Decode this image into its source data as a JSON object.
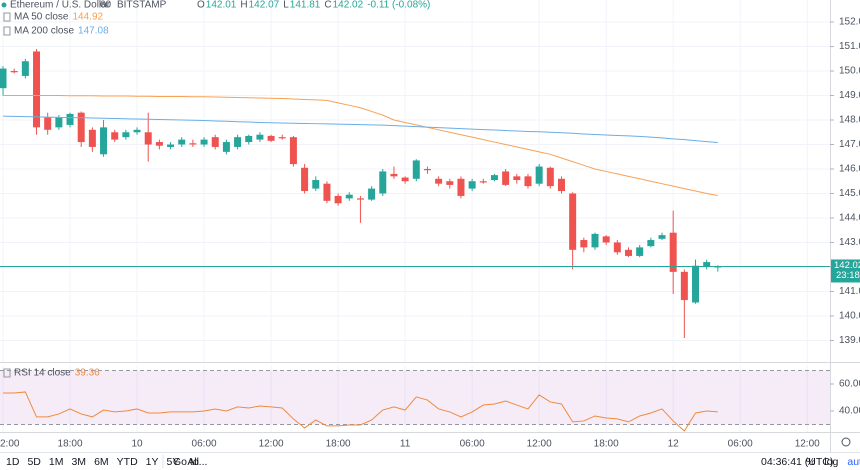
{
  "chart_data": {
    "type": "candlestick",
    "title": "Ethereum / U.S. Dollar",
    "interval": "60",
    "exchange": "BITSTAMP",
    "ohlc_labels": [
      "O",
      "H",
      "L",
      "C"
    ],
    "change": "-0.11 (-0.08%)",
    "countdown": "23:18",
    "up_color": "#26a69a",
    "down_color": "#ef5350",
    "candles": {
      "open": [
        149.3,
        150.0,
        149.8,
        150.8,
        148.1,
        147.7,
        147.8,
        148.3,
        147.6,
        146.6,
        147.5,
        147.3,
        147.5,
        147.5,
        147.1,
        146.9,
        147.0,
        147.05,
        147.0,
        147.3,
        146.7,
        146.9,
        147.1,
        147.2,
        147.35,
        147.3,
        147.3,
        146.05,
        145.2,
        145.4,
        144.9,
        144.8,
        144.8,
        144.75,
        145.0,
        145.8,
        145.65,
        145.6,
        146.0,
        145.6,
        145.5,
        145.6,
        145.2,
        145.5,
        145.55,
        145.9,
        145.7,
        145.7,
        145.4,
        146.05,
        145.6,
        145.0,
        143.1,
        142.8,
        143.25,
        143.0,
        142.7,
        142.45,
        142.85,
        143.15,
        143.4,
        141.8,
        140.55,
        142.0,
        142.01
      ],
      "high": [
        150.2,
        150.1,
        150.5,
        150.9,
        148.3,
        148.2,
        148.3,
        148.35,
        147.7,
        148.0,
        147.6,
        147.6,
        147.7,
        148.3,
        147.2,
        147.1,
        147.3,
        147.2,
        147.3,
        147.4,
        147.2,
        147.4,
        147.4,
        147.5,
        147.4,
        147.4,
        147.35,
        146.2,
        145.7,
        145.5,
        145.0,
        145.05,
        144.9,
        145.3,
        146.0,
        146.1,
        145.7,
        146.4,
        146.1,
        145.7,
        145.6,
        145.7,
        145.6,
        145.6,
        145.8,
        146.0,
        145.8,
        145.8,
        146.2,
        146.1,
        145.7,
        145.05,
        143.2,
        143.4,
        143.3,
        143.1,
        142.8,
        142.9,
        143.2,
        143.4,
        144.3,
        141.9,
        142.3,
        142.3,
        142.07
      ],
      "low": [
        149.0,
        149.9,
        149.7,
        147.4,
        147.4,
        147.6,
        147.7,
        146.9,
        146.7,
        146.5,
        147.1,
        147.2,
        147.4,
        146.3,
        146.8,
        146.8,
        146.9,
        146.9,
        146.9,
        146.8,
        146.6,
        146.8,
        147.0,
        147.1,
        147.1,
        147.2,
        146.1,
        145.0,
        145.1,
        144.6,
        144.5,
        144.7,
        143.8,
        144.7,
        144.9,
        145.6,
        145.4,
        145.5,
        145.8,
        145.3,
        145.2,
        144.8,
        145.1,
        145.4,
        145.5,
        145.3,
        145.4,
        145.2,
        145.3,
        145.2,
        145.0,
        141.9,
        142.6,
        142.7,
        142.9,
        142.5,
        142.4,
        142.4,
        142.8,
        143.1,
        140.9,
        139.1,
        140.5,
        141.9,
        141.81
      ],
      "close": [
        150.1,
        149.95,
        150.4,
        147.7,
        147.6,
        148.1,
        148.25,
        147.1,
        146.9,
        147.7,
        147.2,
        147.5,
        147.6,
        147.0,
        146.95,
        147.0,
        147.2,
        147.0,
        147.2,
        146.9,
        147.1,
        147.3,
        147.35,
        147.4,
        147.15,
        147.25,
        146.2,
        145.1,
        145.55,
        144.7,
        144.6,
        144.95,
        144.75,
        145.2,
        145.9,
        145.7,
        145.5,
        146.35,
        145.95,
        145.4,
        145.35,
        144.9,
        145.5,
        145.45,
        145.75,
        145.35,
        145.55,
        145.3,
        146.1,
        145.3,
        145.1,
        142.7,
        142.8,
        143.35,
        143.0,
        142.6,
        142.45,
        142.8,
        143.1,
        143.3,
        141.8,
        140.65,
        142.05,
        142.2,
        142.02
      ]
    },
    "series": [
      {
        "name": "MA 50 close",
        "color": "#f7a155",
        "values": [
          149.0,
          149.0,
          149.0,
          149.0,
          149.0,
          149.0,
          148.99,
          148.99,
          148.99,
          148.98,
          148.98,
          148.98,
          148.97,
          148.97,
          148.96,
          148.96,
          148.96,
          148.95,
          148.95,
          148.94,
          148.93,
          148.92,
          148.91,
          148.9,
          148.89,
          148.88,
          148.86,
          148.84,
          148.82,
          148.8,
          148.7,
          148.6,
          148.5,
          148.35,
          148.2,
          148.0,
          147.9,
          147.8,
          147.7,
          147.6,
          147.5,
          147.4,
          147.3,
          147.2,
          147.1,
          147.0,
          146.9,
          146.8,
          146.7,
          146.6,
          146.45,
          146.3,
          146.15,
          146.0,
          145.9,
          145.8,
          145.7,
          145.6,
          145.5,
          145.4,
          145.3,
          145.2,
          145.1,
          145.0,
          144.92
        ]
      },
      {
        "name": "MA 200 close",
        "color": "#6aaee6",
        "values": [
          148.16,
          148.15,
          148.14,
          148.13,
          148.12,
          148.11,
          148.1,
          148.09,
          148.08,
          148.07,
          148.06,
          148.05,
          148.04,
          148.03,
          148.02,
          148.01,
          148.0,
          147.99,
          147.98,
          147.96,
          147.95,
          147.93,
          147.92,
          147.9,
          147.89,
          147.88,
          147.87,
          147.86,
          147.85,
          147.84,
          147.83,
          147.82,
          147.81,
          147.8,
          147.79,
          147.77,
          147.75,
          147.73,
          147.71,
          147.69,
          147.67,
          147.65,
          147.63,
          147.61,
          147.59,
          147.57,
          147.55,
          147.53,
          147.52,
          147.5,
          147.48,
          147.46,
          147.43,
          147.41,
          147.39,
          147.37,
          147.35,
          147.33,
          147.3,
          147.27,
          147.23,
          147.2,
          147.16,
          147.12,
          147.08
        ]
      }
    ],
    "xlim": [
      -0.27,
      74.04
    ],
    "xticks": [
      {
        "value": 0,
        "label": "2:00"
      },
      {
        "value": 6,
        "label": "18:00"
      },
      {
        "value": 12,
        "label": "10"
      },
      {
        "value": 18,
        "label": "06:00"
      },
      {
        "value": 24,
        "label": "12:00"
      },
      {
        "value": 30,
        "label": "18:00"
      },
      {
        "value": 36,
        "label": "11"
      },
      {
        "value": 42,
        "label": "06:00"
      },
      {
        "value": 48,
        "label": "12:00"
      },
      {
        "value": 54,
        "label": "18:00"
      },
      {
        "value": 60,
        "label": "12"
      },
      {
        "value": 66,
        "label": "06:00"
      },
      {
        "value": 72,
        "label": "12:00"
      }
    ],
    "ylim": [
      138.12,
      152.9
    ],
    "yticks": [
      {
        "value": 139,
        "label": "139.00"
      },
      {
        "value": 140,
        "label": "140.00"
      },
      {
        "value": 141,
        "label": "141.00"
      },
      {
        "value": 142,
        "label": "142.00"
      },
      {
        "value": 143,
        "label": "143.00"
      },
      {
        "value": 144,
        "label": "144.00"
      },
      {
        "value": 145,
        "label": "145.00"
      },
      {
        "value": 146,
        "label": "146.00"
      },
      {
        "value": 147,
        "label": "147.00"
      },
      {
        "value": 148,
        "label": "148.00"
      },
      {
        "value": 149,
        "label": "149.00"
      },
      {
        "value": 150,
        "label": "150.00"
      },
      {
        "value": 151,
        "label": "151.00"
      },
      {
        "value": 152,
        "label": "152.00"
      }
    ],
    "grid": true,
    "rsi": {
      "name": "RSI 14 close",
      "color": "#f08a3c",
      "band_color": "#9c27b0",
      "ylim": [
        24.4,
        74.1
      ],
      "yticks": [
        {
          "value": 40,
          "label": "40.00"
        },
        {
          "value": 60,
          "label": "60.00"
        }
      ],
      "band": [
        30,
        70
      ],
      "values": [
        53.3,
        53.3,
        54.1,
        35.6,
        35.6,
        37.8,
        41.5,
        37.8,
        35.6,
        40.7,
        39.3,
        40.0,
        41.5,
        38.5,
        38.5,
        39.3,
        39.3,
        39.3,
        40.0,
        41.5,
        40.0,
        43.0,
        42.2,
        43.7,
        43.0,
        42.2,
        34.1,
        27.4,
        33.3,
        28.9,
        28.9,
        29.6,
        29.6,
        33.3,
        40.7,
        43.0,
        40.7,
        50.4,
        48.1,
        41.5,
        39.3,
        35.6,
        39.3,
        44.4,
        45.2,
        47.4,
        44.4,
        41.5,
        51.9,
        46.7,
        45.2,
        31.9,
        32.6,
        36.3,
        34.8,
        34.1,
        31.9,
        36.3,
        38.5,
        41.5,
        32.6,
        25.2,
        38.5,
        40.0,
        39.36
      ]
    },
    "toolbar": [
      "1D",
      "5D",
      "1M",
      "3M",
      "6M",
      "YTD",
      "1Y",
      "5Y",
      "All"
    ],
    "goto": "Go to...",
    "clock": "04:36:41 (UTC)",
    "options": [
      "%",
      "log",
      "auto"
    ]
  }
}
